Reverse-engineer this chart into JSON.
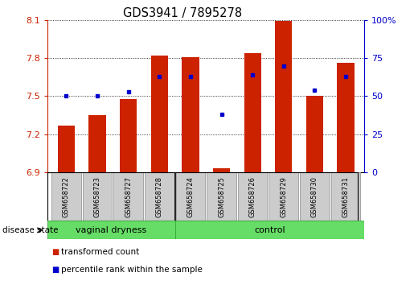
{
  "title": "GDS3941 / 7895278",
  "samples": [
    "GSM658722",
    "GSM658723",
    "GSM658727",
    "GSM658728",
    "GSM658724",
    "GSM658725",
    "GSM658726",
    "GSM658729",
    "GSM658730",
    "GSM658731"
  ],
  "transformed_count": [
    7.27,
    7.35,
    7.48,
    7.82,
    7.81,
    6.93,
    7.84,
    8.09,
    7.5,
    7.76
  ],
  "percentile_rank": [
    50,
    50,
    53,
    63,
    63,
    38,
    64,
    70,
    54,
    63
  ],
  "groups": [
    "vaginal dryness",
    "vaginal dryness",
    "vaginal dryness",
    "vaginal dryness",
    "control",
    "control",
    "control",
    "control",
    "control",
    "control"
  ],
  "bar_color": "#CC2200",
  "dot_color": "#0000CC",
  "ylim_left": [
    6.9,
    8.1
  ],
  "ylim_right": [
    0,
    100
  ],
  "yticks_left": [
    6.9,
    7.2,
    7.5,
    7.8,
    8.1
  ],
  "yticks_right": [
    0,
    25,
    50,
    75,
    100
  ],
  "ytick_labels_left": [
    "6.9",
    "7.2",
    "7.5",
    "7.8",
    "8.1"
  ],
  "ytick_labels_right": [
    "0",
    "25",
    "50",
    "75",
    "100%"
  ],
  "left_axis_color": "#CC2200",
  "right_axis_color": "#0000CC",
  "legend_bar": "transformed count",
  "legend_dot": "percentile rank within the sample",
  "baseline": 6.9,
  "vaginal_dryness_count": 4,
  "control_count": 6,
  "gray_box_color": "#CCCCCC",
  "gray_box_edge": "#999999",
  "green_color": "#66DD66",
  "green_edge": "#33AA33"
}
